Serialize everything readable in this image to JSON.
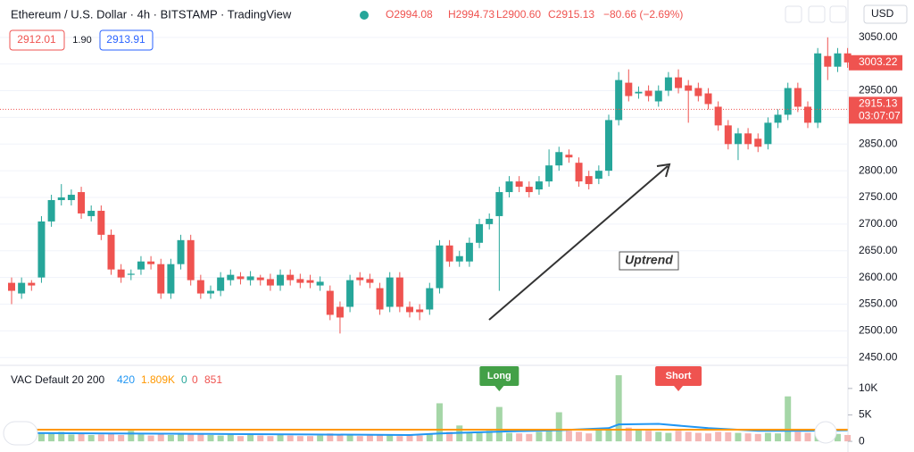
{
  "header": {
    "symbol": "Ethereum / U.S. Dollar · 4h · BITSTAMP · TradingView",
    "open": "O2994.08",
    "high": "H2994.73",
    "low": "L2900.60",
    "close": "C2915.13",
    "change": "−80.66 (−2.69%)",
    "sell": "2912.01",
    "spread": "1.90",
    "buy": "2913.91",
    "currency": "USD"
  },
  "annotation": "Uptrend",
  "chart_data": {
    "type": "candlestick",
    "up_color": "#26a69a",
    "down_color": "#ef5350",
    "open": [
      2590,
      2570,
      2590,
      2600,
      2705,
      2745,
      2745,
      2760,
      2715,
      2725,
      2680,
      2615,
      2605,
      2615,
      2630,
      2625,
      2570,
      2625,
      2670,
      2595,
      2570,
      2575,
      2595,
      2602,
      2595,
      2600,
      2597,
      2585,
      2605,
      2597,
      2595,
      2585,
      2575,
      2545,
      2545,
      2600,
      2597,
      2580,
      2545,
      2600,
      2545,
      2540,
      2540,
      2580,
      2660,
      2630,
      2630,
      2665,
      2700,
      2715,
      2760,
      2780,
      2770,
      2765,
      2780,
      2810,
      2830,
      2815,
      2790,
      2785,
      2800,
      2895,
      2965,
      2945,
      2950,
      2930,
      2950,
      2975,
      2960,
      2955,
      2945,
      2920,
      2885,
      2850,
      2870,
      2860,
      2850,
      2890,
      2905,
      2955,
      2920,
      2890,
      3015,
      2995,
      3020
    ],
    "high": [
      2600,
      2600,
      2595,
      2715,
      2755,
      2775,
      2765,
      2770,
      2735,
      2735,
      2690,
      2625,
      2615,
      2640,
      2640,
      2635,
      2635,
      2680,
      2680,
      2605,
      2585,
      2610,
      2615,
      2610,
      2612,
      2605,
      2607,
      2615,
      2615,
      2607,
      2605,
      2602,
      2585,
      2555,
      2605,
      2610,
      2607,
      2590,
      2610,
      2610,
      2555,
      2550,
      2590,
      2670,
      2670,
      2650,
      2675,
      2710,
      2720,
      2770,
      2790,
      2790,
      2780,
      2790,
      2840,
      2845,
      2840,
      2825,
      2800,
      2810,
      2905,
      2985,
      2990,
      2958,
      2960,
      2960,
      2985,
      2990,
      2970,
      2965,
      2955,
      2930,
      2895,
      2880,
      2880,
      2870,
      2900,
      2915,
      2965,
      2965,
      2930,
      3030,
      3050,
      3030,
      3030
    ],
    "low": [
      2550,
      2560,
      2575,
      2590,
      2695,
      2735,
      2735,
      2710,
      2705,
      2670,
      2605,
      2590,
      2595,
      2605,
      2615,
      2560,
      2560,
      2615,
      2585,
      2560,
      2560,
      2565,
      2585,
      2587,
      2585,
      2585,
      2575,
      2575,
      2585,
      2580,
      2580,
      2575,
      2520,
      2495,
      2535,
      2585,
      2580,
      2530,
      2535,
      2535,
      2525,
      2520,
      2530,
      2570,
      2620,
      2620,
      2620,
      2655,
      2690,
      2575,
      2750,
      2760,
      2750,
      2755,
      2770,
      2800,
      2815,
      2770,
      2765,
      2775,
      2790,
      2885,
      2930,
      2935,
      2930,
      2920,
      2940,
      2945,
      2890,
      2930,
      2915,
      2875,
      2840,
      2820,
      2840,
      2835,
      2840,
      2880,
      2895,
      2910,
      2880,
      2880,
      2970,
      2985,
      2993
    ],
    "close": [
      2575,
      2590,
      2585,
      2705,
      2745,
      2750,
      2755,
      2720,
      2725,
      2680,
      2615,
      2600,
      2607,
      2630,
      2625,
      2570,
      2625,
      2670,
      2595,
      2570,
      2575,
      2600,
      2605,
      2597,
      2602,
      2595,
      2585,
      2605,
      2595,
      2590,
      2590,
      2592,
      2530,
      2525,
      2595,
      2595,
      2590,
      2540,
      2600,
      2545,
      2535,
      2535,
      2580,
      2660,
      2630,
      2640,
      2665,
      2700,
      2710,
      2760,
      2780,
      2770,
      2760,
      2780,
      2810,
      2835,
      2825,
      2780,
      2775,
      2800,
      2895,
      2970,
      2940,
      2948,
      2940,
      2950,
      2975,
      2955,
      2950,
      2940,
      2925,
      2885,
      2850,
      2870,
      2850,
      2845,
      2890,
      2905,
      2955,
      2920,
      2890,
      3020,
      2995,
      3020,
      3003
    ],
    "ylim": [
      2437,
      3120
    ],
    "yticks": [
      {
        "value": 3050,
        "label": "3050.00"
      },
      {
        "value": 3000,
        "label": "3000.00"
      },
      {
        "value": 2950,
        "label": "2950.00"
      },
      {
        "value": 2900,
        "label": "2900.00"
      },
      {
        "value": 2850,
        "label": "2850.00"
      },
      {
        "value": 2800,
        "label": "2800.00"
      },
      {
        "value": 2750,
        "label": "2750.00"
      },
      {
        "value": 2700,
        "label": "2700.00"
      },
      {
        "value": 2650,
        "label": "2650.00"
      },
      {
        "value": 2600,
        "label": "2600.00"
      },
      {
        "value": 2550,
        "label": "2550.00"
      },
      {
        "value": 2500,
        "label": "2500.00"
      },
      {
        "value": 2450,
        "label": "2450.00"
      }
    ],
    "grid": true,
    "current_price": 3003.22,
    "last_price": 2915.13,
    "countdown": "03:07:07",
    "volume": {
      "title": "VAC Default 20 200",
      "legend_values": [
        "420",
        "1.809K",
        "0",
        "0",
        "851"
      ],
      "up_color": "#a5d6a7",
      "down_color": "#f4b6b4",
      "values": [
        1500,
        1400,
        1200,
        1600,
        1500,
        1800,
        1300,
        1400,
        1200,
        1300,
        1400,
        1200,
        2000,
        1300,
        1100,
        1500,
        1200,
        1600,
        1400,
        1300,
        1200,
        1100,
        1300,
        1000,
        1200,
        1100,
        1000,
        1200,
        1100,
        1000,
        1000,
        1100,
        1500,
        1300,
        1200,
        1000,
        1100,
        1200,
        1300,
        1000,
        1200,
        1100,
        1300,
        7200,
        1800,
        3000,
        1600,
        1800,
        2000,
        6500,
        1600,
        1500,
        1400,
        1800,
        2200,
        5500,
        2000,
        1800,
        1500,
        2200,
        2400,
        12500,
        2600,
        2200,
        2000,
        1800,
        1600,
        2000,
        1800,
        1600,
        1500,
        1800,
        1700,
        1600,
        1500,
        1400,
        1600,
        1500,
        8500,
        1800,
        1600,
        2200,
        1800,
        1400,
        1200
      ],
      "ylim": [
        -1000,
        14200
      ],
      "yticks": [
        {
          "value": 10000,
          "label": "10K"
        },
        {
          "value": 5000,
          "label": "5K"
        },
        0
      ],
      "fast_ma": {
        "color": "#2196f3",
        "x": [
          0,
          10,
          20,
          30,
          40,
          43,
          50,
          55,
          60,
          61,
          65,
          70,
          75,
          80,
          84
        ],
        "values": [
          1600,
          1500,
          1400,
          1300,
          1200,
          1500,
          1900,
          2100,
          2500,
          3200,
          3300,
          2500,
          2000,
          2000,
          2100
        ]
      },
      "slow_ma": {
        "color": "#ff9800",
        "x": [
          0,
          84
        ],
        "values": [
          2200,
          2200
        ]
      }
    },
    "signals": [
      {
        "label": "Long",
        "index": 49,
        "color": "#43a047"
      },
      {
        "label": "Short",
        "index": 67,
        "color": "#ef5350"
      }
    ]
  }
}
